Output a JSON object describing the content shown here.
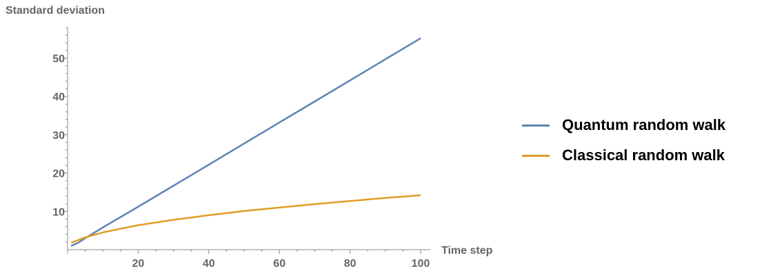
{
  "chart_data": {
    "type": "line",
    "title": "",
    "xlabel": "Time step",
    "ylabel": "Standard deviation",
    "xlim": [
      0,
      100
    ],
    "ylim": [
      0,
      58
    ],
    "xticks": [
      20,
      40,
      60,
      80,
      100
    ],
    "yticks": [
      10,
      20,
      30,
      40,
      50
    ],
    "grid": false,
    "legend_position": "right",
    "series": [
      {
        "name": "Quantum random walk",
        "color": "#5e81b5",
        "x": [
          1,
          3,
          5,
          10,
          20,
          30,
          40,
          50,
          60,
          70,
          80,
          90,
          100
        ],
        "y": [
          1.0,
          1.8,
          3.0,
          5.8,
          11.2,
          16.7,
          22.2,
          27.7,
          33.2,
          38.7,
          44.2,
          49.7,
          55.2
        ]
      },
      {
        "name": "Classical random walk",
        "color": "#e19c24",
        "x": [
          1,
          5,
          10,
          20,
          30,
          40,
          50,
          60,
          70,
          80,
          90,
          100
        ],
        "y": [
          1.8,
          3.2,
          4.5,
          6.4,
          7.8,
          9.0,
          10.1,
          11.0,
          11.9,
          12.7,
          13.5,
          14.2
        ]
      }
    ]
  }
}
